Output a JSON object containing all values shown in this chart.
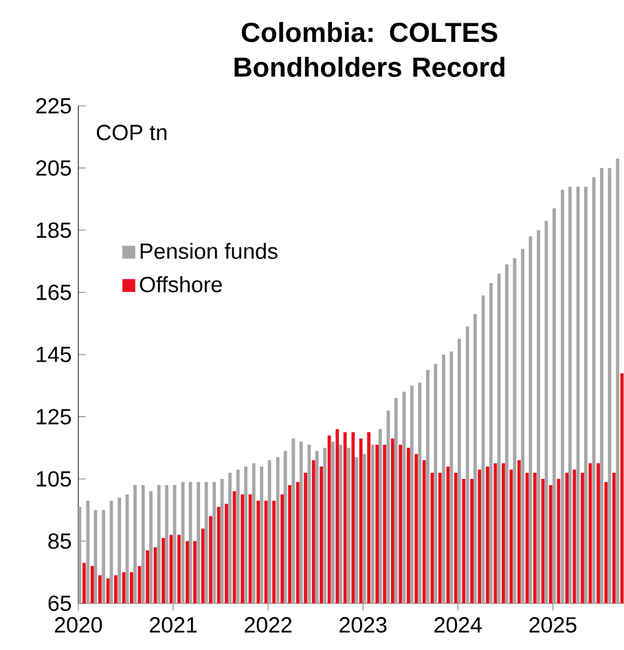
{
  "chart_data": {
    "type": "bar",
    "title": "Colombia: COLTES\nBondholders Record",
    "ylabel": "COP tn",
    "x": [
      "2020-01-15",
      "2020-02-15",
      "2020-03-15",
      "2020-04-15",
      "2020-05-15",
      "2020-06-15",
      "2020-07-15",
      "2020-08-15",
      "2020-09-15",
      "2020-10-15",
      "2020-11-15",
      "2020-12-15",
      "2021-01-15",
      "2021-02-15",
      "2021-03-15",
      "2021-04-15",
      "2021-05-15",
      "2021-06-15",
      "2021-07-15",
      "2021-08-15",
      "2021-09-15",
      "2021-10-15",
      "2021-11-15",
      "2021-12-15",
      "2022-01-15",
      "2022-02-15",
      "2022-03-15",
      "2022-04-15",
      "2022-05-15",
      "2022-06-15",
      "2022-07-15",
      "2022-08-15",
      "2022-09-15",
      "2022-10-15",
      "2022-11-15",
      "2022-12-15",
      "2023-01-15",
      "2023-02-15",
      "2023-03-15",
      "2023-04-15",
      "2023-05-15",
      "2023-06-15",
      "2023-07-15",
      "2023-08-15",
      "2023-09-15",
      "2023-10-15",
      "2023-11-15",
      "2023-12-15",
      "2024-01-15",
      "2024-02-15",
      "2024-03-15",
      "2024-04-15",
      "2024-05-15",
      "2024-06-15",
      "2024-07-15",
      "2024-08-15",
      "2024-09-15",
      "2024-10-15",
      "2024-11-15",
      "2024-12-15",
      "2025-01-15",
      "2025-02-15",
      "2025-03-15",
      "2025-04-15",
      "2025-05-15",
      "2025-06-15",
      "2025-07-15",
      "2025-08-15",
      "2025-09-15"
    ],
    "series": [
      {
        "name": "Pension funds",
        "color": "#a6a6a6",
        "values": [
          96,
          98,
          95,
          95,
          98,
          99,
          100,
          103,
          103,
          101,
          103,
          103,
          103,
          104,
          104,
          104,
          104,
          104,
          105,
          107,
          108,
          109,
          110,
          109,
          111,
          112,
          114,
          118,
          117,
          116,
          114,
          115,
          117,
          116,
          115,
          112,
          113,
          116,
          121,
          127,
          131,
          133,
          135,
          136,
          140,
          142,
          145,
          146,
          150,
          154,
          158,
          164,
          168,
          171,
          174,
          176,
          179,
          183,
          185,
          188,
          192,
          198,
          199,
          199,
          199,
          202,
          205,
          205,
          208
        ]
      },
      {
        "name": "Offshore",
        "color": "#e8101e",
        "values": [
          78,
          77,
          74,
          73,
          74,
          75,
          75,
          77,
          82,
          83,
          86,
          87,
          87,
          85,
          85,
          89,
          93,
          96,
          97,
          101,
          100,
          100,
          98,
          98,
          98,
          100,
          103,
          104,
          107,
          111,
          109,
          119,
          121,
          120,
          120,
          118,
          120,
          116,
          116,
          118,
          116,
          115,
          113,
          111,
          107,
          107,
          109,
          107,
          105,
          105,
          108,
          109,
          110,
          110,
          108,
          111,
          107,
          107,
          105,
          103,
          105,
          107,
          108,
          107,
          110,
          110,
          104,
          107,
          139
        ]
      }
    ],
    "xlim": [
      "2020-01-01",
      "2025-10-01"
    ],
    "xticks": [
      {
        "value": "2020-01-01",
        "label": "2020"
      },
      {
        "value": "2021-01-01",
        "label": "2021"
      },
      {
        "value": "2022-01-01",
        "label": "2022"
      },
      {
        "value": "2023-01-01",
        "label": "2023"
      },
      {
        "value": "2024-01-01",
        "label": "2024"
      },
      {
        "value": "2025-01-01",
        "label": "2025"
      }
    ],
    "ylim": [
      65,
      225
    ],
    "yticks": [
      65,
      85,
      105,
      125,
      145,
      165,
      185,
      205,
      225
    ],
    "legend": "top left",
    "grid": false
  }
}
